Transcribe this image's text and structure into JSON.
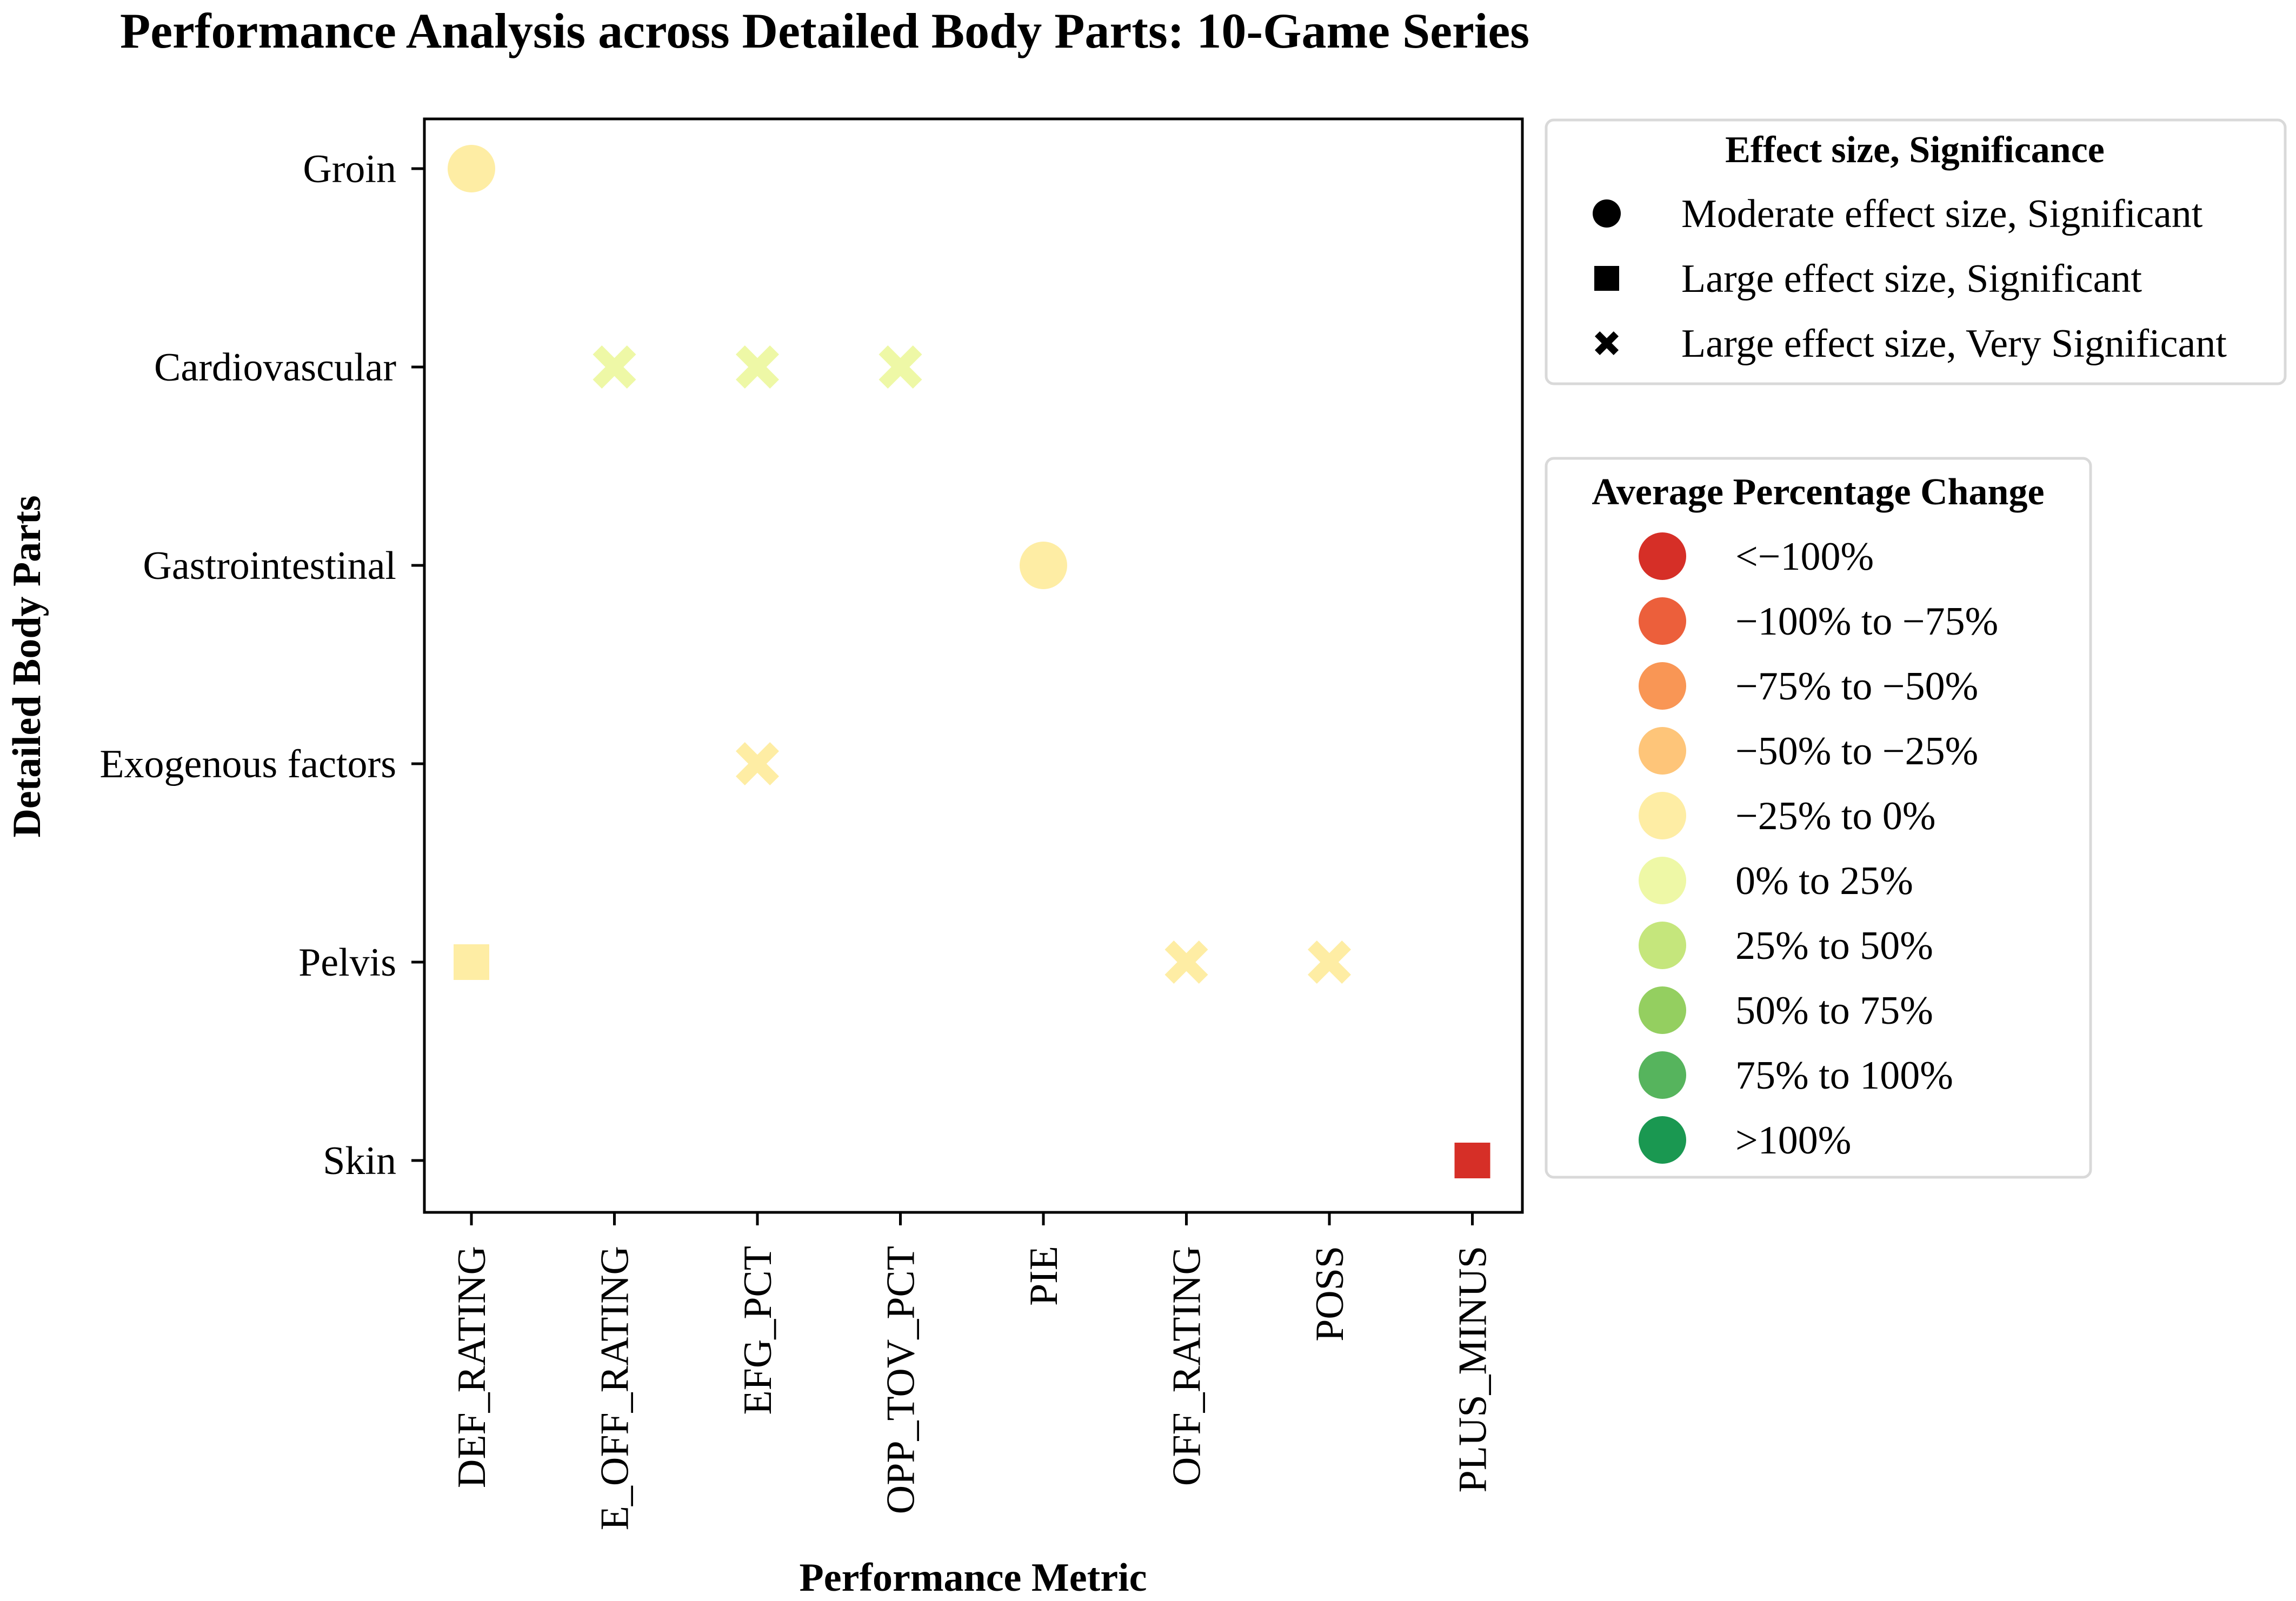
{
  "chart_data": {
    "type": "scatter",
    "title": "Performance Analysis across Detailed Body Parts: 10-Game Series",
    "xlabel": "Performance Metric",
    "ylabel": "Detailed Body Parts",
    "x_categories": [
      "DEF_RATING",
      "E_OFF_RATING",
      "EFG_PCT",
      "OPP_TOV_PCT",
      "PIE",
      "OFF_RATING",
      "POSS",
      "PLUS_MINUS"
    ],
    "y_categories": [
      "Groin",
      "Cardiovascular",
      "Gastrointestinal",
      "Exogenous factors",
      "Pelvis",
      "Skin"
    ],
    "grid": false,
    "points": [
      {
        "x": "DEF_RATING",
        "y": "Groin",
        "shape": "circle",
        "bin": "-25% to 0%"
      },
      {
        "x": "E_OFF_RATING",
        "y": "Cardiovascular",
        "shape": "x",
        "bin": "0% to 25%"
      },
      {
        "x": "EFG_PCT",
        "y": "Cardiovascular",
        "shape": "x",
        "bin": "0% to 25%"
      },
      {
        "x": "OPP_TOV_PCT",
        "y": "Cardiovascular",
        "shape": "x",
        "bin": "0% to 25%"
      },
      {
        "x": "PIE",
        "y": "Gastrointestinal",
        "shape": "circle",
        "bin": "-25% to 0%"
      },
      {
        "x": "EFG_PCT",
        "y": "Exogenous factors",
        "shape": "x",
        "bin": "-25% to 0%"
      },
      {
        "x": "DEF_RATING",
        "y": "Pelvis",
        "shape": "square",
        "bin": "-25% to 0%"
      },
      {
        "x": "OFF_RATING",
        "y": "Pelvis",
        "shape": "x",
        "bin": "-25% to 0%"
      },
      {
        "x": "POSS",
        "y": "Pelvis",
        "shape": "x",
        "bin": "-25% to 0%"
      },
      {
        "x": "PLUS_MINUS",
        "y": "Skin",
        "shape": "square",
        "bin": "<-100%"
      }
    ],
    "shape_legend": {
      "title": "Effect size, Significance",
      "placement": "upper-right, outside plot",
      "entries": [
        {
          "shape": "circle",
          "label": "Moderate effect size, Significant"
        },
        {
          "shape": "square",
          "label": "Large effect size, Significant"
        },
        {
          "shape": "x",
          "label": "Large effect size, Very Significant"
        }
      ]
    },
    "color_legend": {
      "title": "Average Percentage Change",
      "placement": "right, outside plot",
      "entries": [
        {
          "key": "<-100%",
          "label": "<−100%",
          "color": "#d62f27"
        },
        {
          "key": "-100% to -75%",
          "label": "−100% to −75%",
          "color": "#ec5f3b"
        },
        {
          "key": "-75% to -50%",
          "label": "−75% to −50%",
          "color": "#f99655"
        },
        {
          "key": "-50% to -25%",
          "label": "−50% to −25%",
          "color": "#fec579"
        },
        {
          "key": "-25% to 0%",
          "label": "−25% to 0%",
          "color": "#feeda4"
        },
        {
          "key": "0% to 25%",
          "label": "0% to 25%",
          "color": "#eef8a6"
        },
        {
          "key": "25% to 50%",
          "label": "25% to 50%",
          "color": "#c5e67c"
        },
        {
          "key": "50% to 75%",
          "label": "50% to 75%",
          "color": "#94cf60"
        },
        {
          "key": "75% to 100%",
          "label": "75% to 100%",
          "color": "#56b45d"
        },
        {
          "key": ">100%",
          "label": ">100%",
          "color": "#1a9851"
        }
      ]
    }
  }
}
